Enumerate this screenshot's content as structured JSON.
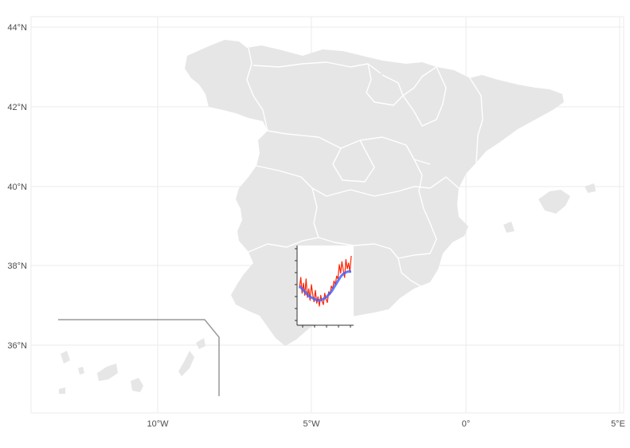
{
  "map": {
    "lat_labels": [
      "44°N",
      "42°N",
      "40°N",
      "38°N",
      "36°N"
    ],
    "lon_labels": [
      "10°W",
      "5°W",
      "0°",
      "5°E"
    ],
    "land_color": "#e6e6e6",
    "border_color": "#ffffff",
    "grid_color": "#ebebeb",
    "inset_frame_color": "#999999"
  },
  "inset_chart": {
    "type": "line",
    "series": [
      {
        "name": "",
        "color": "#ff2200",
        "y": [
          0.45,
          0.6,
          0.38,
          0.52,
          0.35,
          0.58,
          0.32,
          0.44,
          0.28,
          0.5,
          0.36,
          0.26,
          0.42,
          0.24,
          0.33,
          0.2,
          0.35,
          0.27,
          0.22,
          0.38,
          0.3,
          0.25,
          0.4,
          0.36,
          0.48,
          0.44,
          0.55,
          0.5,
          0.62,
          0.58,
          0.78,
          0.66,
          0.82,
          0.7,
          0.6,
          0.85,
          0.72,
          0.8,
          0.68,
          0.9
        ]
      },
      {
        "name": "",
        "color": "#4466ff",
        "y": [
          0.48,
          0.46,
          0.44,
          0.42,
          0.4,
          0.38,
          0.36,
          0.34,
          0.33,
          0.32,
          0.31,
          0.3,
          0.29,
          0.285,
          0.28,
          0.28,
          0.285,
          0.29,
          0.3,
          0.31,
          0.32,
          0.34,
          0.36,
          0.38,
          0.4,
          0.43,
          0.46,
          0.49,
          0.52,
          0.55,
          0.58,
          0.61,
          0.63,
          0.65,
          0.66,
          0.67,
          0.68,
          0.68,
          0.68,
          0.68
        ]
      }
    ]
  }
}
